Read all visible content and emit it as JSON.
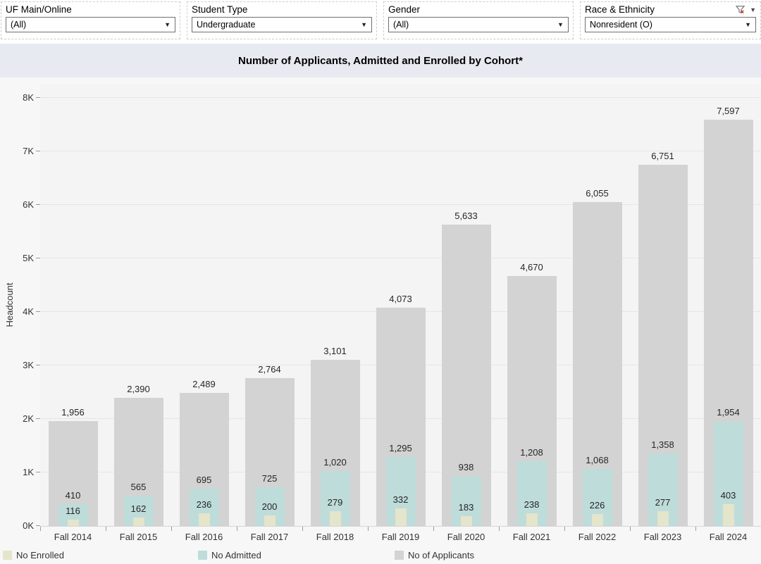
{
  "filters": [
    {
      "label": "UF Main/Online",
      "value": "(All)"
    },
    {
      "label": "Student Type",
      "value": "Undergraduate"
    },
    {
      "label": "Gender",
      "value": "(All)"
    },
    {
      "label": "Race & Ethnicity",
      "value": "Nonresident (O)",
      "filter_icon": "funnel-x-icon",
      "menu_icon": "caret-down-icon"
    }
  ],
  "chart_data": {
    "type": "bar",
    "title": "Number of Applicants, Admitted and Enrolled by Cohort*",
    "ylabel": "Headcount",
    "xlabel": "",
    "categories": [
      "Fall 2014",
      "Fall 2015",
      "Fall 2016",
      "Fall 2017",
      "Fall 2018",
      "Fall 2019",
      "Fall 2020",
      "Fall 2021",
      "Fall 2022",
      "Fall 2023",
      "Fall 2024"
    ],
    "series": [
      {
        "name": "No of Applicants",
        "color": "#d3d3d3",
        "values": [
          1956,
          2390,
          2489,
          2764,
          3101,
          4073,
          5633,
          4670,
          6055,
          6751,
          7597
        ]
      },
      {
        "name": "No Admitted",
        "color": "#bedcda",
        "values": [
          410,
          565,
          695,
          725,
          1020,
          1295,
          938,
          1208,
          1068,
          1358,
          1954
        ]
      },
      {
        "name": "No Enrolled",
        "color": "#e4e5cb",
        "values": [
          116,
          162,
          236,
          200,
          279,
          332,
          183,
          238,
          226,
          277,
          403
        ]
      }
    ],
    "y_ticks": [
      "0K",
      "1K",
      "2K",
      "3K",
      "4K",
      "5K",
      "6K",
      "7K",
      "8K"
    ],
    "ylim": [
      0,
      8000
    ],
    "grid": true,
    "legend_position": "bottom",
    "legend_items": [
      {
        "label": "No Enrolled",
        "color": "#e4e5cb"
      },
      {
        "label": "No Admitted",
        "color": "#bedcda"
      },
      {
        "label": "No of Applicants",
        "color": "#d3d3d3"
      }
    ]
  }
}
